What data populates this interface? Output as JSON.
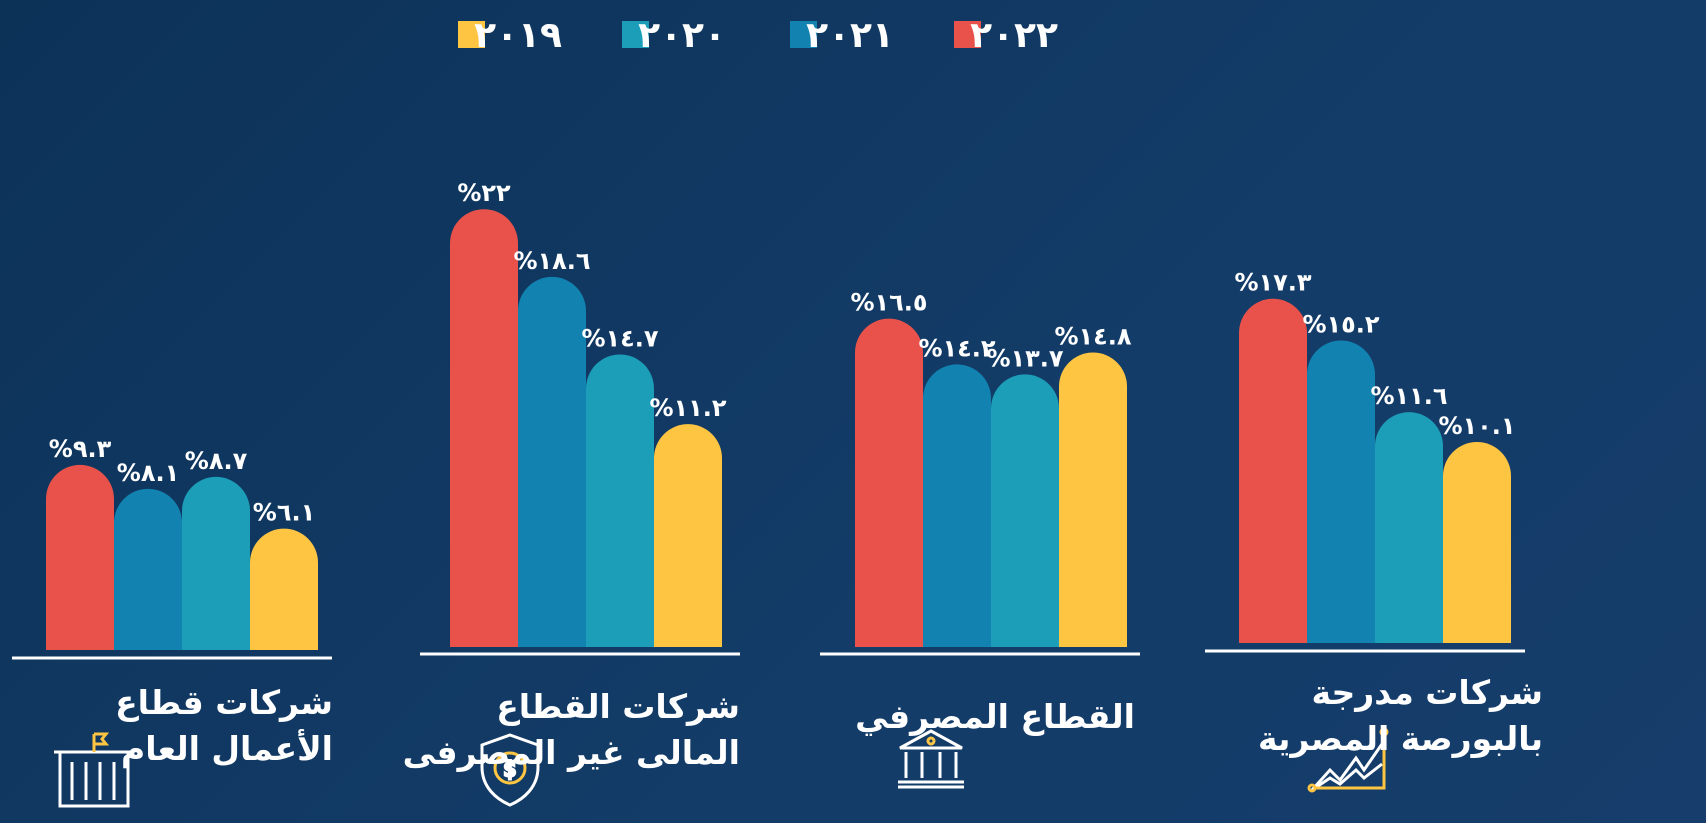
{
  "chart_data": {
    "type": "bar",
    "categories": [
      "شركات قطاع\nالأعمال العام",
      "شركات القطاع\nالمالى غير المصرفى",
      "القطاع المصرفي",
      "شركات مدرجة\nبالبورصة المصرية"
    ],
    "series": [
      {
        "name": "٢٠٢٢",
        "color": "#e8524a",
        "values": [
          9.3,
          22,
          16.5,
          17.3
        ],
        "value_labels": [
          "%٩.٣",
          "%٢٢",
          "%١٦.٥",
          "%١٧.٣"
        ]
      },
      {
        "name": "٢٠٢١",
        "color": "#1282b0",
        "values": [
          8.1,
          18.6,
          14.2,
          15.2
        ],
        "value_labels": [
          "%٨.١",
          "%١٨.٦",
          "%١٤.٢",
          "%١٥.٢"
        ]
      },
      {
        "name": "٢٠٢٠",
        "color": "#1c9db8",
        "values": [
          8.7,
          14.7,
          13.7,
          11.6
        ],
        "value_labels": [
          "%٨.٧",
          "%١٤.٧",
          "%١٣.٧",
          "%١١.٦"
        ]
      },
      {
        "name": "٢٠١٩",
        "color": "#fec542",
        "values": [
          6.1,
          11.2,
          14.8,
          10.1
        ],
        "value_labels": [
          "%٦.١",
          "%١١.٢",
          "%١٤.٨",
          "%١٠.١"
        ]
      }
    ]
  }
}
